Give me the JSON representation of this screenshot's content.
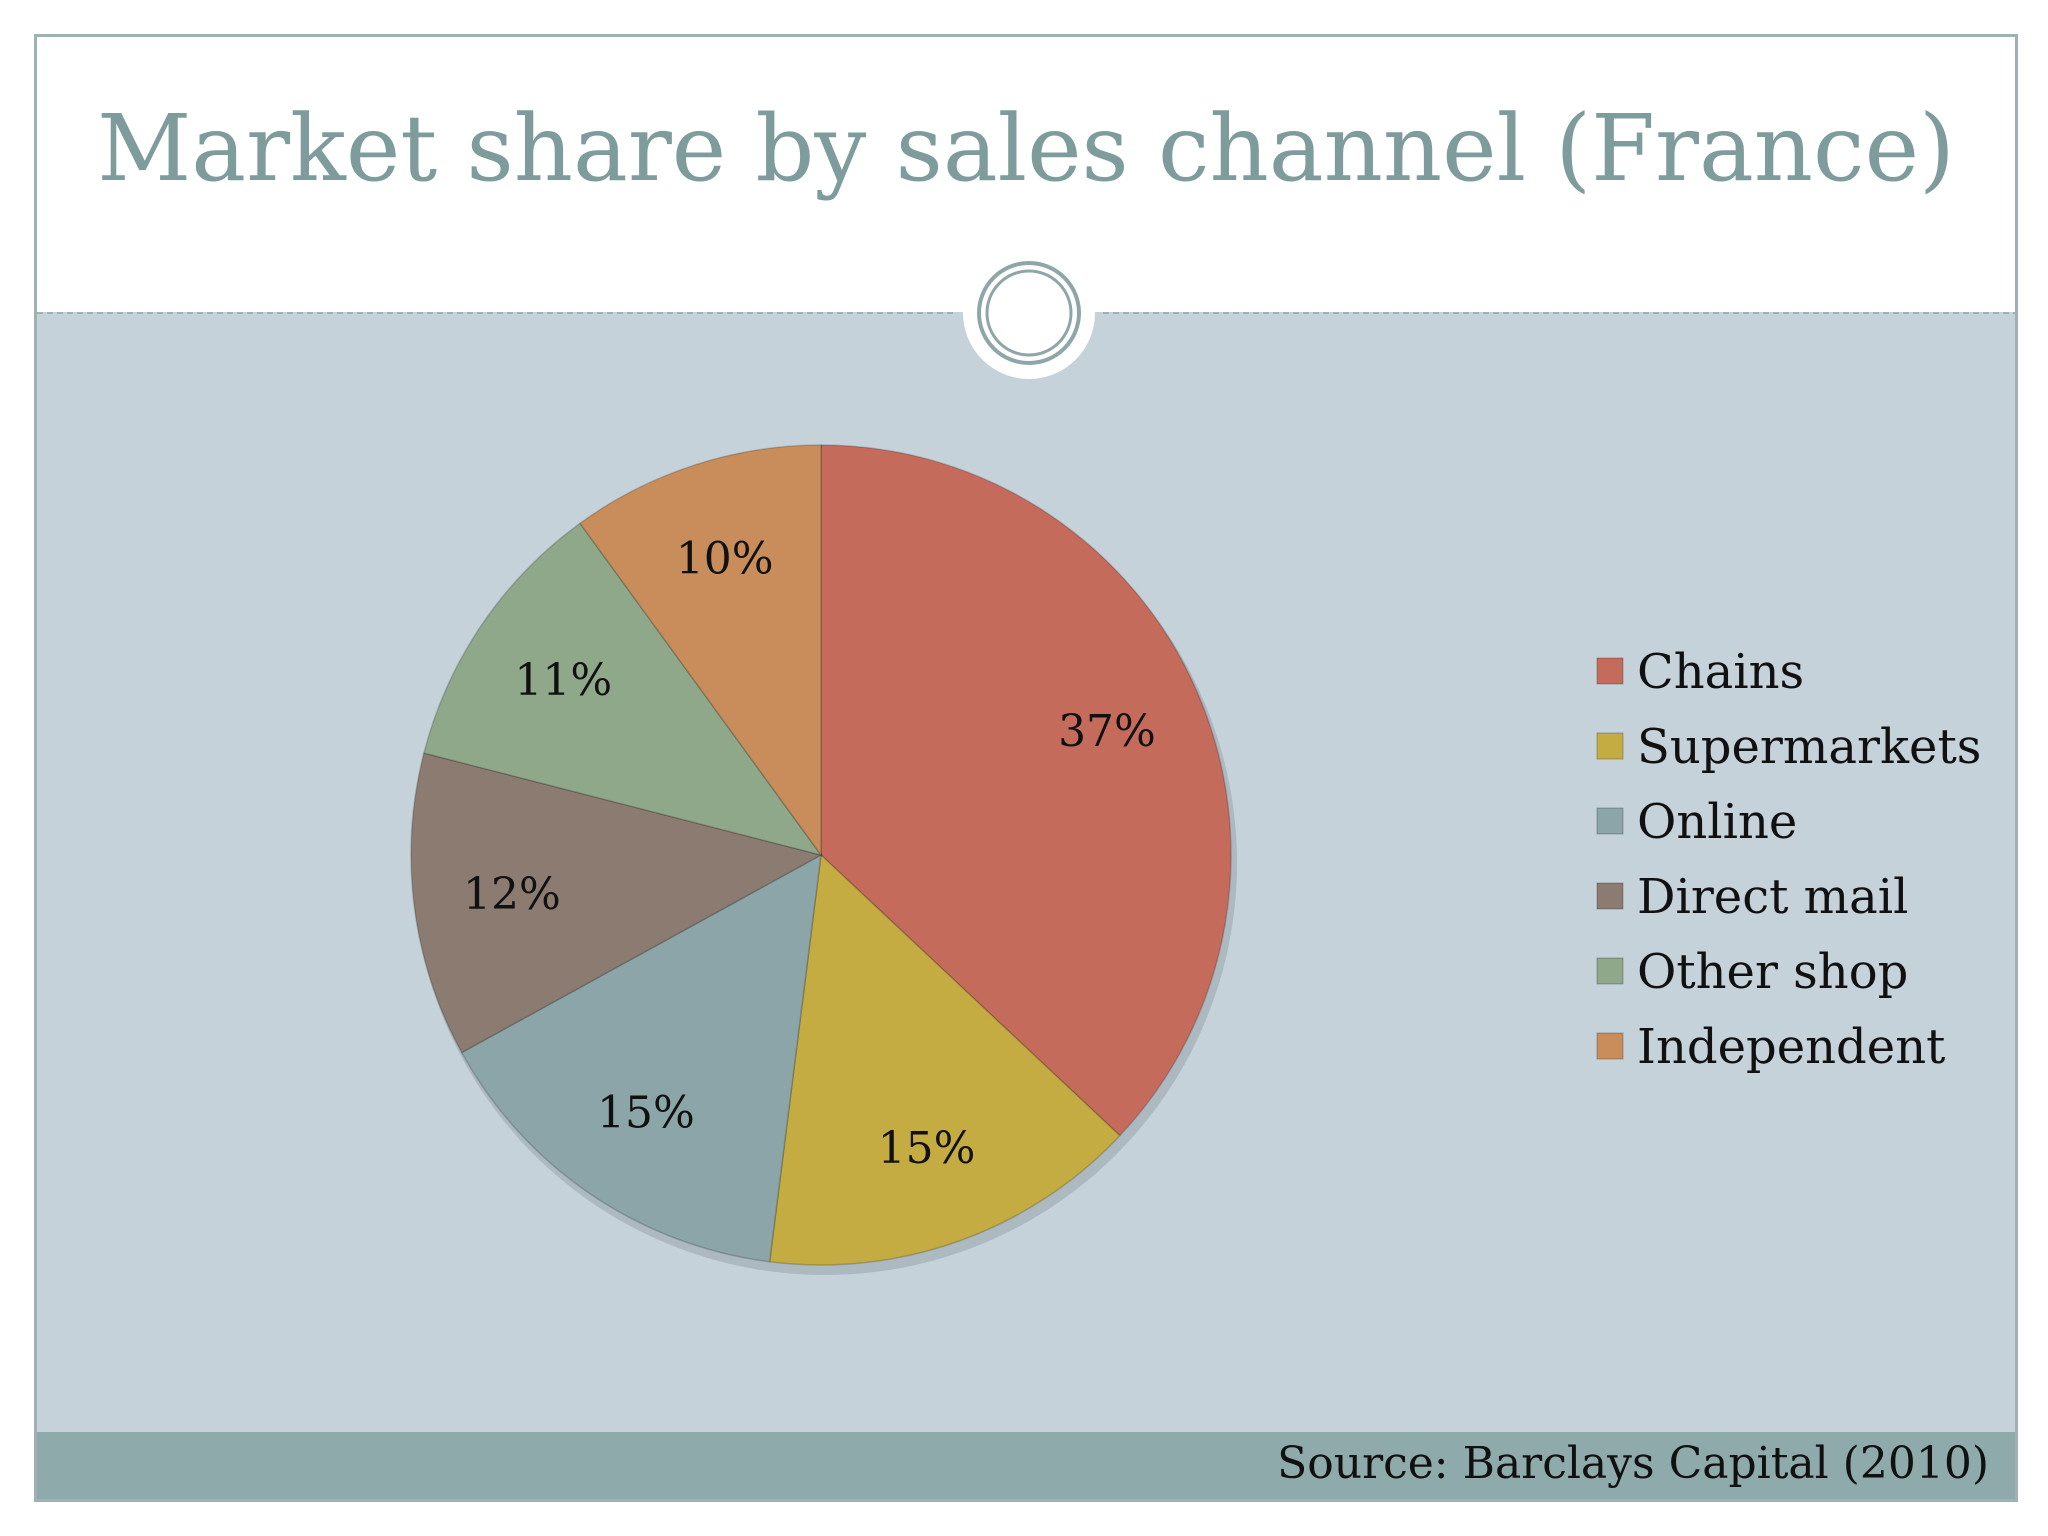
{
  "slide": {
    "title": "Market share by sales channel (France)",
    "source": "Source: Barclays Capital (2010)"
  },
  "colors": {
    "title": "#7f9c9d",
    "content_background": "#c5d2d9",
    "footer_background": "#8faaab",
    "frame_border": "#9fb1b2"
  },
  "chart_data": {
    "type": "pie",
    "title": "",
    "legend_position": "right",
    "categories": [
      "Chains",
      "Supermarkets",
      "Online",
      "Direct mail",
      "Other shop",
      "Independent"
    ],
    "values": [
      37,
      15,
      15,
      12,
      11,
      10
    ],
    "labels": [
      "37%",
      "15%",
      "15%",
      "12%",
      "11%",
      "10%"
    ],
    "colors": [
      "#c56b5c",
      "#c4ac42",
      "#8ca5a9",
      "#8b7b70",
      "#90a88a",
      "#c88d5b"
    ],
    "start_angle": "12 o'clock",
    "direction": "clockwise"
  }
}
